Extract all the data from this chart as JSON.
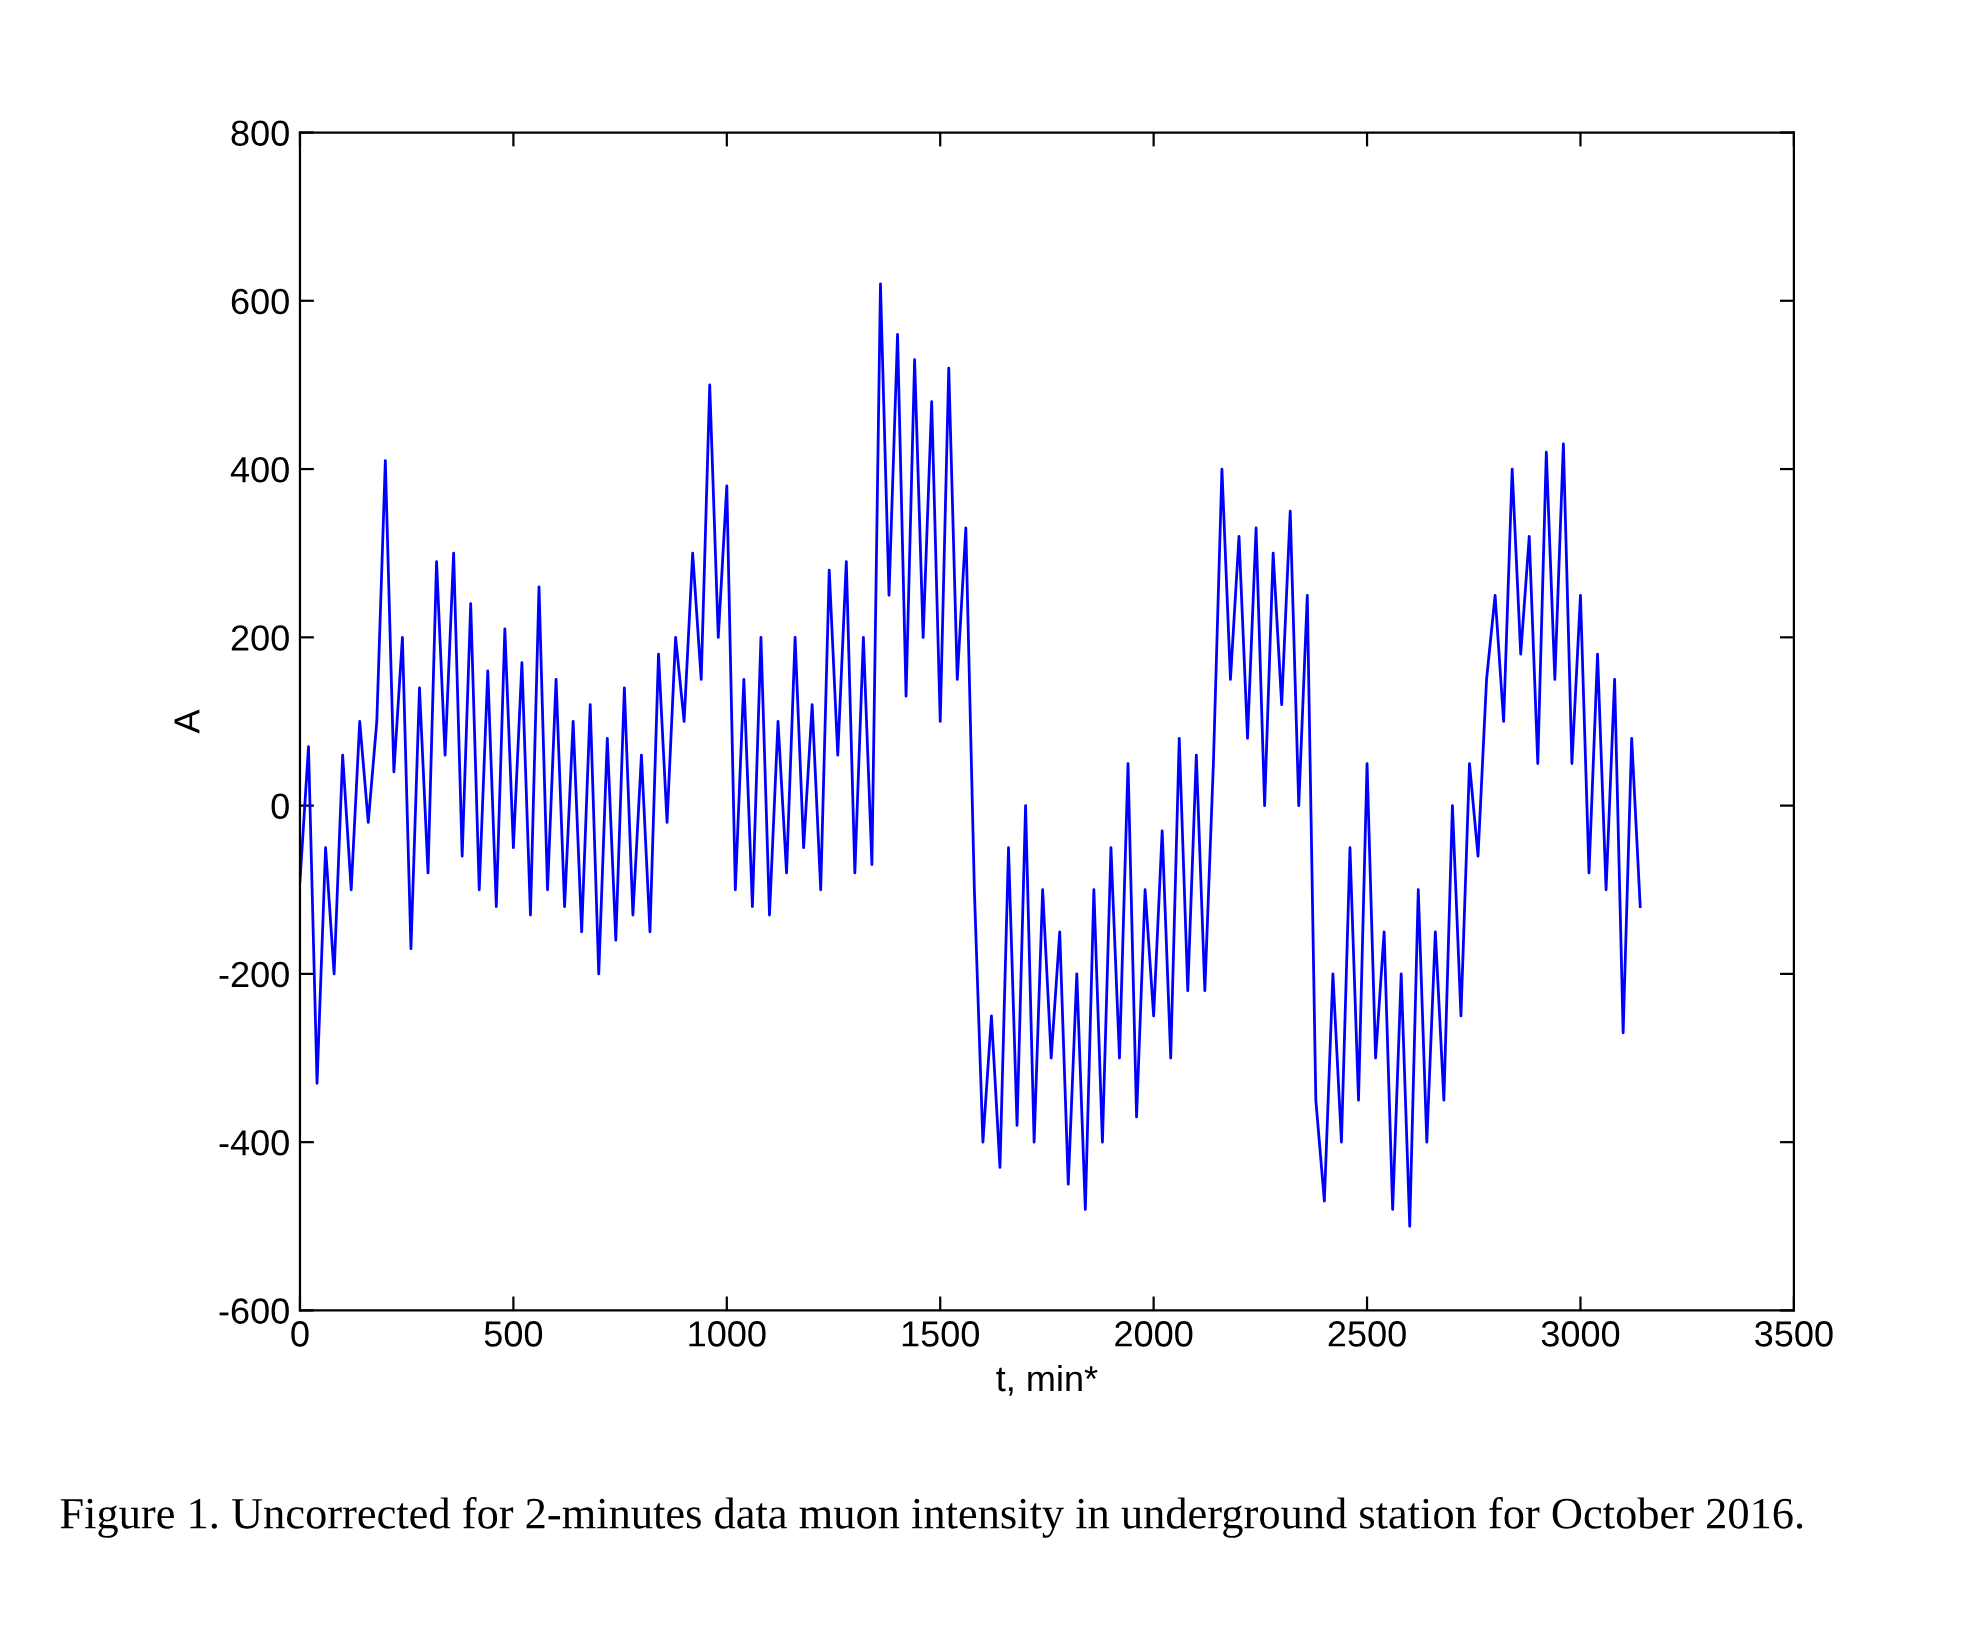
{
  "chart_data": {
    "type": "line",
    "xlabel": "t, min*",
    "ylabel": "A",
    "xlim": [
      0,
      3500
    ],
    "xticks": [
      0,
      500,
      1000,
      1500,
      2000,
      2500,
      3000,
      3500
    ],
    "ylim": [
      -600,
      800
    ],
    "yticks": [
      -600,
      -400,
      -200,
      0,
      200,
      400,
      600,
      800
    ],
    "grid": false,
    "legend": false,
    "marker": "none",
    "line_style": "solid",
    "annotations": [
      "Figure 1. Uncorrected for 2-minutes data muon intensity in underground station for October 2016."
    ],
    "x": [
      0,
      20,
      40,
      60,
      80,
      100,
      120,
      140,
      160,
      180,
      200,
      220,
      240,
      260,
      280,
      300,
      320,
      340,
      360,
      380,
      400,
      420,
      440,
      460,
      480,
      500,
      520,
      540,
      560,
      580,
      600,
      620,
      640,
      660,
      680,
      700,
      720,
      740,
      760,
      780,
      800,
      820,
      840,
      860,
      880,
      900,
      920,
      940,
      960,
      980,
      1000,
      1020,
      1040,
      1060,
      1080,
      1100,
      1120,
      1140,
      1160,
      1180,
      1200,
      1220,
      1240,
      1260,
      1280,
      1300,
      1320,
      1340,
      1360,
      1380,
      1400,
      1420,
      1440,
      1460,
      1480,
      1500,
      1520,
      1540,
      1560,
      1580,
      1600,
      1620,
      1640,
      1660,
      1680,
      1700,
      1720,
      1740,
      1760,
      1780,
      1800,
      1820,
      1840,
      1860,
      1880,
      1900,
      1920,
      1940,
      1960,
      1980,
      2000,
      2020,
      2040,
      2060,
      2080,
      2100,
      2120,
      2140,
      2160,
      2180,
      2200,
      2220,
      2240,
      2260,
      2280,
      2300,
      2320,
      2340,
      2360,
      2380,
      2400,
      2420,
      2440,
      2460,
      2480,
      2500,
      2520,
      2540,
      2560,
      2580,
      2600,
      2620,
      2640,
      2660,
      2680,
      2700,
      2720,
      2740,
      2760,
      2780,
      2800,
      2820,
      2840,
      2860,
      2880,
      2900,
      2920,
      2940,
      2960,
      2980,
      3000,
      3020,
      3040,
      3060,
      3080,
      3100,
      3120,
      3140
    ],
    "series": [
      {
        "color": "#0000ff",
        "values": [
          -90,
          70,
          -330,
          -50,
          -200,
          60,
          -100,
          100,
          -20,
          100,
          410,
          40,
          200,
          -170,
          140,
          -80,
          290,
          60,
          300,
          -60,
          240,
          -100,
          160,
          -120,
          210,
          -50,
          170,
          -130,
          260,
          -100,
          150,
          -120,
          100,
          -150,
          120,
          -200,
          80,
          -160,
          140,
          -130,
          60,
          -150,
          180,
          -20,
          200,
          100,
          300,
          150,
          500,
          200,
          380,
          -100,
          150,
          -120,
          200,
          -130,
          100,
          -80,
          200,
          -50,
          120,
          -100,
          280,
          60,
          290,
          -80,
          200,
          -70,
          620,
          250,
          560,
          130,
          530,
          200,
          480,
          100,
          520,
          150,
          330,
          -100,
          -400,
          -250,
          -430,
          -50,
          -380,
          0,
          -400,
          -100,
          -300,
          -150,
          -450,
          -200,
          -480,
          -100,
          -400,
          -50,
          -300,
          50,
          -370,
          -100,
          -250,
          -30,
          -300,
          80,
          -220,
          60,
          -220,
          50,
          400,
          150,
          320,
          80,
          330,
          0,
          300,
          120,
          350,
          0,
          250,
          -350,
          -470,
          -200,
          -400,
          -50,
          -350,
          50,
          -300,
          -150,
          -480,
          -200,
          -500,
          -100,
          -400,
          -150,
          -350,
          0,
          -250,
          50,
          -60,
          150,
          250,
          100,
          400,
          180,
          320,
          50,
          420,
          150,
          430,
          50,
          250,
          -80,
          180,
          -100,
          150,
          -270,
          80,
          -120
        ]
      }
    ]
  }
}
